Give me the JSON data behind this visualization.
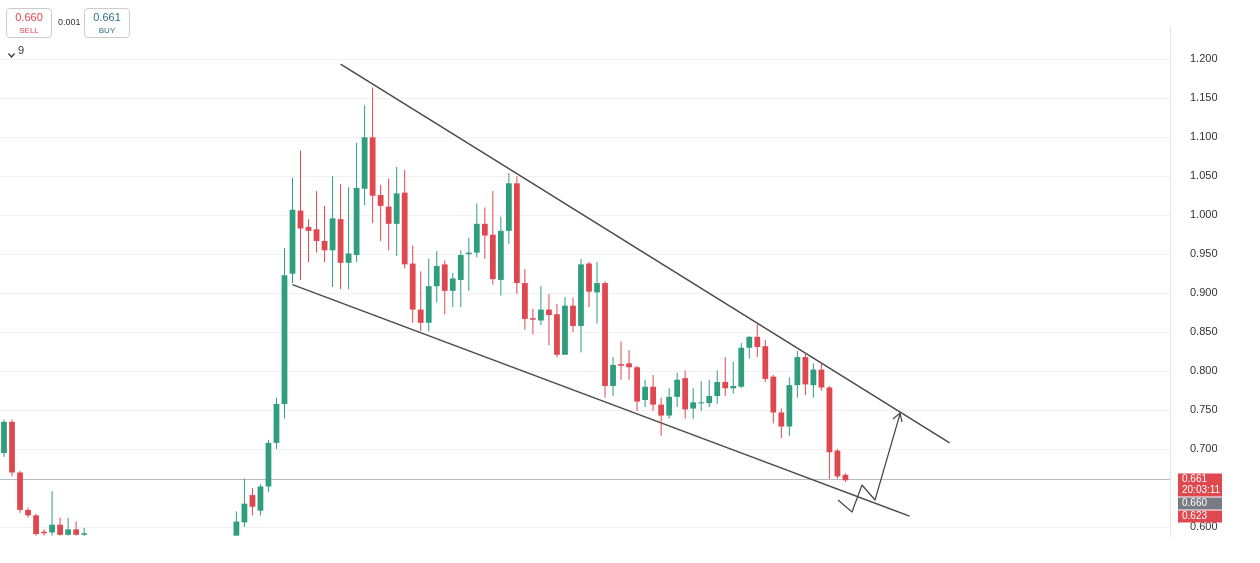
{
  "chart_data": {
    "type": "candlestick",
    "categories": [
      null,
      null,
      null,
      null,
      null,
      null,
      null,
      null,
      null,
      null,
      null,
      null,
      null,
      null,
      null,
      null,
      null,
      null,
      null,
      null,
      null,
      null,
      null,
      null,
      null,
      null,
      null,
      null,
      null,
      null,
      null,
      null,
      null,
      null,
      null,
      null,
      null,
      null,
      null,
      null,
      null,
      null,
      null,
      null,
      null,
      null,
      null,
      null,
      null,
      null,
      null,
      null,
      null,
      null,
      null,
      null,
      null,
      null,
      null,
      null,
      null,
      null,
      null,
      null,
      null,
      null,
      null,
      null,
      null,
      null,
      null,
      null,
      null,
      null,
      null,
      null,
      null,
      null,
      null,
      null,
      null,
      null,
      null,
      null,
      null,
      null,
      null,
      null,
      null,
      null,
      null,
      null,
      null,
      null,
      null,
      null,
      null,
      null,
      null,
      null,
      null,
      null,
      null,
      null,
      null,
      null,
      null,
      null,
      null,
      null,
      null,
      null,
      null,
      null,
      null,
      null,
      null,
      null,
      null,
      null,
      null,
      null,
      null,
      null,
      null,
      null,
      null,
      null,
      null,
      null,
      null,
      null,
      null,
      null,
      null,
      null,
      null,
      null,
      null,
      null,
      null,
      null,
      null,
      null,
      null,
      null
    ],
    "ohlc": [
      [
        0.695,
        0.738,
        0.69,
        0.735
      ],
      [
        0.735,
        0.738,
        0.665,
        0.67
      ],
      [
        0.67,
        0.672,
        0.618,
        0.622
      ],
      [
        0.622,
        0.625,
        0.612,
        0.615
      ],
      [
        0.615,
        0.617,
        0.589,
        0.591
      ],
      [
        0.594,
        0.597,
        0.589,
        0.592
      ],
      [
        0.593,
        0.646,
        0.589,
        0.603
      ],
      [
        0.603,
        0.612,
        0.589,
        0.59
      ],
      [
        0.59,
        0.612,
        0.589,
        0.597
      ],
      [
        0.597,
        0.607,
        0.589,
        0.59
      ],
      [
        0.59,
        0.599,
        0.589,
        0.592
      ],
      null,
      null,
      null,
      null,
      null,
      null,
      null,
      null,
      null,
      null,
      null,
      null,
      null,
      null,
      null,
      null,
      null,
      null,
      [
        0.589,
        0.62,
        0.589,
        0.607
      ],
      [
        0.606,
        0.662,
        0.6,
        0.63
      ],
      [
        0.641,
        0.65,
        0.615,
        0.626
      ],
      [
        0.621,
        0.655,
        0.615,
        0.652
      ],
      [
        0.652,
        0.712,
        0.645,
        0.708
      ],
      [
        0.708,
        0.766,
        0.7,
        0.758
      ],
      [
        0.758,
        0.958,
        0.739,
        0.923
      ],
      [
        0.925,
        1.048,
        0.913,
        1.007
      ],
      [
        1.006,
        1.083,
        0.917,
        0.983
      ],
      [
        0.985,
        0.995,
        0.94,
        0.98
      ],
      [
        0.982,
        1.031,
        0.952,
        0.967
      ],
      [
        0.967,
        1.012,
        0.94,
        0.955
      ],
      [
        0.955,
        1.05,
        0.908,
        0.996
      ],
      [
        0.995,
        1.04,
        0.905,
        0.939
      ],
      [
        0.939,
        1.036,
        0.905,
        0.951
      ],
      [
        0.949,
        1.093,
        0.94,
        1.035
      ],
      [
        1.034,
        1.141,
        1.013,
        1.1
      ],
      [
        1.1,
        1.164,
        0.99,
        1.025
      ],
      [
        1.026,
        1.039,
        0.967,
        1.012
      ],
      [
        1.011,
        1.047,
        0.955,
        0.989
      ],
      [
        0.989,
        1.062,
        0.948,
        1.028
      ],
      [
        1.029,
        1.058,
        0.932,
        0.937
      ],
      [
        0.938,
        0.961,
        0.862,
        0.879
      ],
      [
        0.879,
        0.928,
        0.851,
        0.862
      ],
      [
        0.862,
        0.944,
        0.851,
        0.909
      ],
      [
        0.909,
        0.954,
        0.888,
        0.935
      ],
      [
        0.937,
        0.942,
        0.873,
        0.903
      ],
      [
        0.903,
        0.926,
        0.882,
        0.919
      ],
      [
        0.917,
        0.955,
        0.882,
        0.949
      ],
      [
        0.95,
        0.971,
        0.903,
        0.952
      ],
      [
        0.952,
        1.015,
        0.946,
        0.989
      ],
      [
        0.989,
        1.01,
        0.944,
        0.974
      ],
      [
        0.975,
        1.031,
        0.911,
        0.918
      ],
      [
        0.917,
        0.998,
        0.897,
        0.98
      ],
      [
        0.98,
        1.054,
        0.963,
        1.041
      ],
      [
        1.041,
        1.05,
        0.899,
        0.913
      ],
      [
        0.913,
        0.931,
        0.853,
        0.867
      ],
      [
        0.868,
        0.88,
        0.847,
        0.866
      ],
      [
        0.865,
        0.909,
        0.859,
        0.879
      ],
      [
        0.879,
        0.899,
        0.833,
        0.872
      ],
      [
        0.873,
        0.886,
        0.818,
        0.821
      ],
      [
        0.821,
        0.895,
        0.821,
        0.884
      ],
      [
        0.884,
        0.894,
        0.85,
        0.858
      ],
      [
        0.858,
        0.944,
        0.824,
        0.937
      ],
      [
        0.938,
        0.94,
        0.882,
        0.902
      ],
      [
        0.901,
        0.94,
        0.861,
        0.913
      ],
      [
        0.913,
        0.915,
        0.766,
        0.781
      ],
      [
        0.781,
        0.818,
        0.768,
        0.808
      ],
      [
        0.809,
        0.838,
        0.789,
        0.807
      ],
      [
        0.81,
        0.827,
        0.789,
        0.805
      ],
      [
        0.805,
        0.807,
        0.749,
        0.761
      ],
      [
        0.763,
        0.789,
        0.754,
        0.78
      ],
      [
        0.78,
        0.795,
        0.749,
        0.757
      ],
      [
        0.757,
        0.766,
        0.717,
        0.743
      ],
      [
        0.743,
        0.778,
        0.739,
        0.767
      ],
      [
        0.767,
        0.798,
        0.754,
        0.789
      ],
      [
        0.791,
        0.801,
        0.739,
        0.751
      ],
      [
        0.752,
        0.778,
        0.739,
        0.76
      ],
      [
        0.76,
        0.787,
        0.749,
        0.76
      ],
      [
        0.759,
        0.789,
        0.754,
        0.768
      ],
      [
        0.768,
        0.801,
        0.758,
        0.786
      ],
      [
        0.786,
        0.818,
        0.768,
        0.778
      ],
      [
        0.778,
        0.812,
        0.771,
        0.781
      ],
      [
        0.78,
        0.836,
        0.778,
        0.83
      ],
      [
        0.83,
        0.845,
        0.816,
        0.844
      ],
      [
        0.844,
        0.861,
        0.818,
        0.831
      ],
      [
        0.832,
        0.84,
        0.786,
        0.79
      ],
      [
        0.793,
        0.795,
        0.733,
        0.747
      ],
      [
        0.747,
        0.752,
        0.714,
        0.729
      ],
      [
        0.729,
        0.792,
        0.717,
        0.782
      ],
      [
        0.782,
        0.826,
        0.766,
        0.818
      ],
      [
        0.818,
        0.824,
        0.769,
        0.783
      ],
      [
        0.782,
        0.81,
        0.766,
        0.802
      ],
      [
        0.802,
        0.81,
        0.775,
        0.779
      ],
      [
        0.779,
        0.781,
        0.662,
        0.696
      ],
      [
        0.698,
        0.7,
        0.662,
        0.665
      ],
      [
        0.667,
        0.669,
        0.658,
        0.66
      ],
      null,
      null,
      null,
      null,
      null,
      null,
      null,
      null,
      null,
      null,
      null,
      null,
      null,
      null,
      null,
      null,
      null,
      null,
      null,
      null,
      null,
      null,
      null,
      null,
      null,
      null,
      null,
      null,
      null,
      null,
      null,
      null,
      null,
      null,
      null,
      null,
      null,
      null,
      null,
      null
    ],
    "series": [
      {
        "type": "line",
        "color": "#4a4a4a",
        "values": [
          null,
          null,
          null,
          null,
          null,
          null,
          null,
          null,
          null,
          null,
          null,
          null,
          null,
          null,
          null,
          null,
          null,
          null,
          null,
          null,
          null,
          null,
          null,
          null,
          null,
          null,
          null,
          null,
          null,
          null,
          null,
          null,
          null,
          null,
          null,
          null,
          null,
          null,
          null,
          null,
          null,
          null,
          1.194,
          null,
          null,
          null,
          null,
          null,
          null,
          null,
          null,
          null,
          null,
          null,
          null,
          null,
          null,
          null,
          null,
          null,
          null,
          null,
          null,
          null,
          null,
          null,
          null,
          null,
          null,
          null,
          null,
          null,
          null,
          null,
          null,
          null,
          null,
          null,
          null,
          null,
          null,
          null,
          null,
          null,
          null,
          null,
          null,
          null,
          null,
          null,
          null,
          null,
          null,
          null,
          null,
          null,
          null,
          null,
          null,
          null,
          null,
          null,
          null,
          null,
          null,
          null,
          null,
          null,
          null,
          null,
          null,
          null,
          null,
          null,
          null,
          null,
          null,
          null,
          0.708,
          null,
          null,
          null,
          null,
          null,
          null,
          null,
          null,
          null,
          null,
          null,
          null,
          null,
          null,
          null,
          null,
          null,
          null,
          null,
          null,
          null,
          null,
          null,
          null,
          null,
          null,
          null
        ]
      },
      {
        "type": "line",
        "color": "#4a4a4a",
        "values": [
          null,
          null,
          null,
          null,
          null,
          null,
          null,
          null,
          null,
          null,
          null,
          null,
          null,
          null,
          null,
          null,
          null,
          null,
          null,
          null,
          null,
          null,
          null,
          null,
          null,
          null,
          null,
          null,
          null,
          null,
          null,
          null,
          null,
          null,
          null,
          null,
          0.911,
          null,
          null,
          null,
          null,
          null,
          null,
          null,
          null,
          null,
          null,
          null,
          null,
          null,
          null,
          null,
          null,
          null,
          null,
          null,
          null,
          null,
          null,
          null,
          null,
          null,
          null,
          null,
          null,
          null,
          null,
          null,
          null,
          null,
          null,
          null,
          null,
          null,
          null,
          null,
          null,
          null,
          null,
          null,
          null,
          null,
          null,
          null,
          null,
          null,
          null,
          null,
          null,
          null,
          null,
          null,
          null,
          null,
          null,
          null,
          null,
          null,
          null,
          null,
          null,
          null,
          null,
          null,
          null,
          null,
          null,
          null,
          null,
          null,
          null,
          null,
          null,
          0.614,
          null,
          null,
          null,
          null,
          null,
          null,
          null,
          null,
          null,
          null,
          null,
          null,
          null,
          null,
          null,
          null,
          null,
          null,
          null,
          null,
          null,
          null,
          null,
          null,
          null,
          null,
          null,
          null,
          null,
          null,
          null,
          null
        ]
      }
    ],
    "ylim": [
      0.588,
      1.242
    ],
    "yticks": [
      {
        "value": 0.6,
        "label": "0.600"
      },
      {
        "value": 0.7,
        "label": "0.700"
      },
      {
        "value": 0.75,
        "label": "0.750"
      },
      {
        "value": 0.8,
        "label": "0.800"
      },
      {
        "value": 0.85,
        "label": "0.850"
      },
      {
        "value": 0.9,
        "label": "0.900"
      },
      {
        "value": 0.95,
        "label": "0.950"
      },
      {
        "value": 1.0,
        "label": "1.000"
      },
      {
        "value": 1.05,
        "label": "1.050"
      },
      {
        "value": 1.1,
        "label": "1.100"
      },
      {
        "value": 1.15,
        "label": "1.150"
      },
      {
        "value": 1.2,
        "label": "1.200"
      }
    ],
    "grid": "y",
    "tick_labels": "y",
    "marker": "none",
    "ref_lines": [
      {
        "axis": "y",
        "value": 0.661,
        "label": "0.661 20:03:11",
        "color": "#b8bbc2"
      }
    ],
    "annotations": [
      "0.660",
      "SELL",
      "0.001",
      "0.661",
      "BUY",
      "9",
      "0.660",
      "0.623"
    ]
  }
}
